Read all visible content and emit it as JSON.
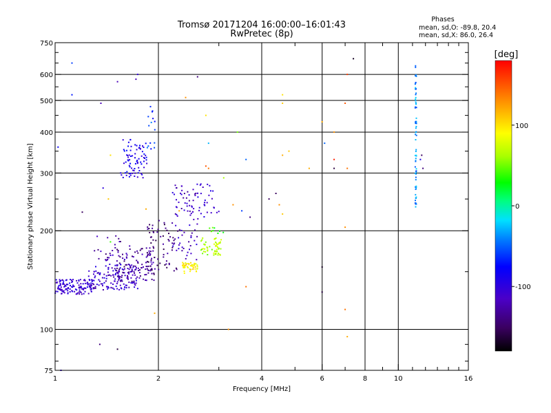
{
  "header": {
    "title_line1": "Tromsø 20171204 16:00:00–16:01:43",
    "title_line2": "RwPretec (8p)"
  },
  "phases_box": {
    "title": "Phases",
    "line_o": "mean, sd,O: -89.8, 20.4",
    "line_x": "mean, sd,X:  86.0, 26.4"
  },
  "chart_data": {
    "type": "scatter",
    "xlabel": "Frequency [MHz]",
    "ylabel": "Stationary phase Virtual Height [km]",
    "x_scale": "log",
    "y_scale": "log",
    "xlim": [
      1,
      16
    ],
    "ylim": [
      75,
      750
    ],
    "x_ticks": [
      1,
      2,
      4,
      6,
      8,
      10,
      16
    ],
    "y_ticks": [
      75,
      100,
      200,
      300,
      400,
      500,
      600,
      750
    ],
    "x_gridlines": [
      2,
      4,
      6,
      8,
      10
    ],
    "y_gridlines": [
      100,
      200,
      300,
      400,
      500,
      600
    ],
    "color_scale": {
      "label": "[deg]",
      "range": [
        -180,
        180
      ],
      "ticks": [
        100,
        0,
        -100
      ],
      "colormap": "rainbow (black → violet → blue → cyan → green → yellow → orange → red)"
    },
    "clusters": [
      {
        "x": [
          1.0,
          1.28
        ],
        "y": [
          128,
          142
        ],
        "phase": -105,
        "n": 130
      },
      {
        "x": [
          1.25,
          1.75
        ],
        "y": [
          132,
          158
        ],
        "phase": -110,
        "n": 150
      },
      {
        "x": [
          1.5,
          1.95
        ],
        "y": [
          140,
          180
        ],
        "phase": -130,
        "n": 110
      },
      {
        "x": [
          1.85,
          2.3
        ],
        "y": [
          150,
          215
        ],
        "phase": -140,
        "n": 70
      },
      {
        "x": [
          2.2,
          2.65
        ],
        "y": [
          160,
          280
        ],
        "phase": -115,
        "n": 80
      },
      {
        "x": [
          2.35,
          2.6
        ],
        "y": [
          148,
          160
        ],
        "phase": 95,
        "n": 45
      },
      {
        "x": [
          2.65,
          3.05
        ],
        "y": [
          168,
          190
        ],
        "phase": 65,
        "n": 55
      },
      {
        "x": [
          2.8,
          3.1
        ],
        "y": [
          195,
          205
        ],
        "phase": 40,
        "n": 8
      },
      {
        "x": [
          1.55,
          1.85
        ],
        "y": [
          290,
          380
        ],
        "phase": -90,
        "n": 80
      },
      {
        "x": [
          1.85,
          1.98
        ],
        "y": [
          350,
          480
        ],
        "phase": -60,
        "n": 15
      },
      {
        "x": [
          2.6,
          3.0
        ],
        "y": [
          220,
          280
        ],
        "phase": -110,
        "n": 25
      },
      {
        "x": [
          1.3,
          1.6
        ],
        "y": [
          160,
          200
        ],
        "phase": -125,
        "n": 25
      },
      {
        "x": [
          11.2,
          11.3
        ],
        "y": [
          230,
          640
        ],
        "phase": -40,
        "n": 70
      }
    ],
    "points": [
      {
        "x": 1.12,
        "y": 650,
        "phase": -60
      },
      {
        "x": 1.12,
        "y": 520,
        "phase": -70
      },
      {
        "x": 1.36,
        "y": 490,
        "phase": -120
      },
      {
        "x": 1.52,
        "y": 570,
        "phase": -120
      },
      {
        "x": 1.74,
        "y": 600,
        "phase": -100
      },
      {
        "x": 1.72,
        "y": 580,
        "phase": -120
      },
      {
        "x": 2.6,
        "y": 590,
        "phase": -140
      },
      {
        "x": 2.4,
        "y": 510,
        "phase": 130
      },
      {
        "x": 2.75,
        "y": 450,
        "phase": 100
      },
      {
        "x": 2.8,
        "y": 370,
        "phase": -30
      },
      {
        "x": 3.4,
        "y": 400,
        "phase": 50
      },
      {
        "x": 3.6,
        "y": 330,
        "phase": -50
      },
      {
        "x": 2.8,
        "y": 310,
        "phase": 140
      },
      {
        "x": 3.1,
        "y": 290,
        "phase": 60
      },
      {
        "x": 3.3,
        "y": 240,
        "phase": 130
      },
      {
        "x": 3.5,
        "y": 230,
        "phase": -60
      },
      {
        "x": 3.7,
        "y": 220,
        "phase": -140
      },
      {
        "x": 4.2,
        "y": 250,
        "phase": -150
      },
      {
        "x": 4.4,
        "y": 260,
        "phase": -150
      },
      {
        "x": 4.5,
        "y": 240,
        "phase": 130
      },
      {
        "x": 4.6,
        "y": 225,
        "phase": 110
      },
      {
        "x": 4.6,
        "y": 340,
        "phase": 120
      },
      {
        "x": 4.8,
        "y": 350,
        "phase": 110
      },
      {
        "x": 4.6,
        "y": 520,
        "phase": 100
      },
      {
        "x": 4.6,
        "y": 490,
        "phase": 110
      },
      {
        "x": 5.5,
        "y": 310,
        "phase": 120
      },
      {
        "x": 6.0,
        "y": 430,
        "phase": 120
      },
      {
        "x": 6.1,
        "y": 370,
        "phase": -50
      },
      {
        "x": 6.5,
        "y": 400,
        "phase": 130
      },
      {
        "x": 6.5,
        "y": 330,
        "phase": 170
      },
      {
        "x": 6.5,
        "y": 310,
        "phase": -160
      },
      {
        "x": 7.1,
        "y": 310,
        "phase": 140
      },
      {
        "x": 7.0,
        "y": 205,
        "phase": 130
      },
      {
        "x": 7.0,
        "y": 490,
        "phase": 150
      },
      {
        "x": 7.1,
        "y": 600,
        "phase": 160
      },
      {
        "x": 7.4,
        "y": 670,
        "phase": -170
      },
      {
        "x": 6.0,
        "y": 155,
        "phase": -170
      },
      {
        "x": 6.0,
        "y": 130,
        "phase": -160
      },
      {
        "x": 7.0,
        "y": 115,
        "phase": 140
      },
      {
        "x": 7.1,
        "y": 95,
        "phase": 120
      },
      {
        "x": 3.2,
        "y": 100,
        "phase": 130
      },
      {
        "x": 3.6,
        "y": 135,
        "phase": 140
      },
      {
        "x": 1.35,
        "y": 90,
        "phase": -140
      },
      {
        "x": 1.52,
        "y": 87,
        "phase": -160
      },
      {
        "x": 1.04,
        "y": 75,
        "phase": -100
      },
      {
        "x": 1.95,
        "y": 112,
        "phase": 120
      },
      {
        "x": 1.02,
        "y": 360,
        "phase": -80
      },
      {
        "x": 1.2,
        "y": 228,
        "phase": -150
      },
      {
        "x": 1.38,
        "y": 270,
        "phase": -100
      },
      {
        "x": 1.43,
        "y": 250,
        "phase": 110
      },
      {
        "x": 1.45,
        "y": 340,
        "phase": 100
      },
      {
        "x": 1.84,
        "y": 233,
        "phase": 120
      },
      {
        "x": 1.45,
        "y": 185,
        "phase": 40
      },
      {
        "x": 2.3,
        "y": 230,
        "phase": 120
      },
      {
        "x": 2.75,
        "y": 315,
        "phase": 150
      },
      {
        "x": 11.7,
        "y": 340,
        "phase": -150
      },
      {
        "x": 11.8,
        "y": 310,
        "phase": -140
      },
      {
        "x": 11.6,
        "y": 330,
        "phase": -90
      }
    ]
  }
}
